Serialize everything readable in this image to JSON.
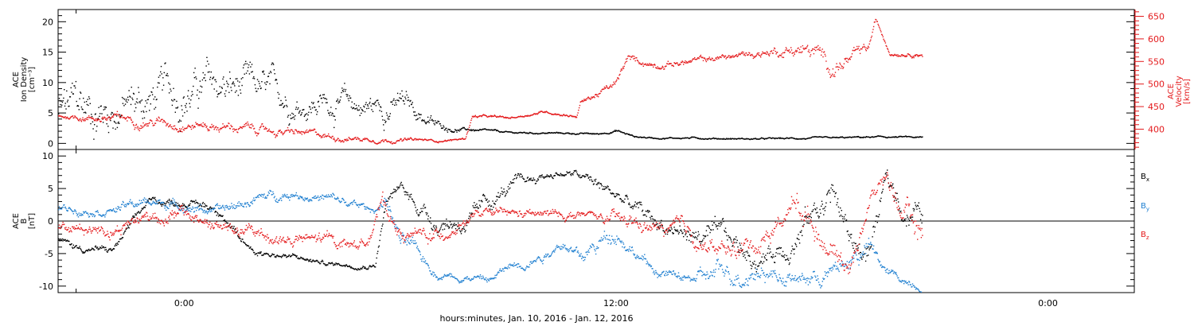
{
  "x_axis": {
    "label": "hours:minutes, Jan. 10, 2016 - Jan. 12, 2016",
    "ticks": [
      {
        "hour": 0,
        "label": "0:00"
      },
      {
        "hour": 12,
        "label": "12:00"
      },
      {
        "hour": 24,
        "label": "0:00"
      }
    ],
    "range_hours": [
      -3.5,
      26.4
    ],
    "minor_step_hours": 1
  },
  "colors": {
    "black": "#000000",
    "red": "#e41a1c",
    "blue": "#1f7fd0"
  },
  "chart_data": [
    {
      "type": "scatter",
      "name": "density-velocity-panel",
      "left_axis": {
        "label_lines": [
          "ACE",
          "Ion Density",
          "[cm⁻³]"
        ],
        "range": [
          -1,
          22
        ],
        "ticks": [
          0,
          5,
          10,
          15,
          20
        ],
        "minor_step": 1
      },
      "right_axis": {
        "label_lines": [
          "ACE",
          "Velocity",
          "[km/s]"
        ],
        "range": [
          355,
          665
        ],
        "ticks": [
          400,
          450,
          500,
          550,
          600,
          650
        ],
        "minor_step": 10,
        "color": "#e41a1c"
      },
      "series": [
        {
          "label": "Ion Density",
          "axis": "left",
          "color": "#000000",
          "x_hours": [
            -3.5,
            -3,
            -2,
            -1,
            0,
            1,
            2,
            3,
            4,
            5,
            6,
            6.5,
            7,
            7.5,
            8,
            9,
            10,
            11,
            11.5,
            12,
            12.5,
            13,
            14,
            15,
            16,
            17,
            18,
            19,
            20,
            20.5
          ],
          "y": [
            5,
            5.3,
            6,
            7,
            9,
            9,
            8,
            7,
            7,
            6,
            6.5,
            5,
            3,
            2.5,
            2.3,
            1.8,
            1.8,
            1.7,
            1.6,
            2.2,
            1.2,
            1,
            1,
            0.9,
            0.8,
            0.9,
            0.9,
            1.1,
            1.1,
            1
          ],
          "scatter": [
            6,
            6,
            5,
            5,
            5,
            5,
            4,
            3,
            3,
            3,
            3,
            2,
            1,
            0.5,
            0.3,
            0.2,
            0.2,
            0.2,
            0.2,
            0.3,
            0.2,
            0.2,
            0.2,
            0.2,
            0.2,
            0.2,
            0.2,
            0.2,
            0.2,
            0.2
          ]
        },
        {
          "label": "Velocity",
          "axis": "right",
          "color": "#e41a1c",
          "x_hours": [
            -3.5,
            -2,
            0,
            2,
            4,
            5,
            6,
            7,
            7.5,
            7.8,
            8,
            9,
            10,
            10.9,
            11,
            12,
            12.3,
            13,
            14,
            15,
            16,
            17,
            17.5,
            18,
            18.5,
            19,
            19.2,
            19.6,
            20,
            20.5
          ],
          "y": [
            430,
            425,
            415,
            400,
            385,
            380,
            378,
            375,
            378,
            380,
            430,
            425,
            440,
            430,
            460,
            500,
            555,
            545,
            550,
            560,
            570,
            580,
            570,
            540,
            555,
            575,
            640,
            570,
            570,
            570
          ],
          "scatter": [
            6,
            14,
            16,
            14,
            10,
            8,
            6,
            4,
            3,
            3,
            5,
            4,
            4,
            4,
            8,
            12,
            12,
            10,
            10,
            10,
            12,
            22,
            25,
            28,
            20,
            14,
            6,
            6,
            6,
            8
          ]
        }
      ]
    },
    {
      "type": "scatter",
      "name": "magnetic-field-panel",
      "left_axis": {
        "label_lines": [
          "ACE",
          "B",
          "[nT]"
        ],
        "range": [
          -11,
          11
        ],
        "ticks": [
          -10,
          -5,
          0,
          5,
          10
        ],
        "minor_step": 1
      },
      "zero_line": true,
      "series": [
        {
          "label": "Bx",
          "color": "#000000",
          "x_hours": [
            -3.5,
            -3,
            -2,
            -1,
            0,
            1,
            1.5,
            2,
            3,
            4,
            5,
            5.3,
            5.6,
            6,
            7,
            8,
            8.5,
            9,
            10,
            10.5,
            11,
            12,
            13,
            14,
            15,
            16,
            17,
            18,
            18.5,
            19,
            19.5,
            20,
            20.5
          ],
          "y": [
            -3,
            -4,
            -4.5,
            3,
            3,
            2,
            -3,
            -4.5,
            -5.5,
            -6.5,
            -6.7,
            -6.5,
            3,
            5,
            0,
            0,
            3,
            5,
            7,
            7.5,
            7,
            4,
            0,
            -2,
            -3,
            -6,
            -2,
            5,
            -3,
            -5,
            6,
            2,
            1
          ],
          "scatter": [
            0.8,
            0.8,
            0.8,
            0.8,
            0.8,
            1,
            1,
            0.8,
            0.6,
            0.5,
            0.5,
            0.5,
            1.2,
            1.5,
            2,
            2,
            2,
            1.5,
            0.8,
            0.8,
            1,
            1.5,
            2,
            2,
            2.5,
            2,
            3,
            3,
            2.5,
            3,
            2,
            3,
            3
          ]
        },
        {
          "label": "By",
          "color": "#1f7fd0",
          "x_hours": [
            -3.5,
            -2,
            -1,
            0,
            1,
            2,
            3,
            4,
            5,
            5.2,
            5.6,
            6,
            7,
            8,
            8.5,
            9,
            10,
            10.5,
            11,
            12,
            13,
            14,
            15,
            16,
            17,
            18,
            19,
            19.5,
            20,
            20.5
          ],
          "y": [
            2,
            2,
            3,
            2.5,
            1.5,
            3.5,
            4.5,
            3.5,
            2,
            1.5,
            3.5,
            -3,
            -8,
            -8.5,
            -9,
            -7,
            -5,
            -3,
            -6,
            -1,
            -7.5,
            -9,
            -8,
            -7,
            -9,
            -8,
            -4,
            -8,
            -9,
            -10
          ],
          "scatter": [
            0.8,
            1,
            1,
            1,
            1,
            1,
            1,
            1,
            1,
            1,
            1,
            2,
            0.8,
            0.8,
            0.8,
            1,
            1,
            1,
            1.5,
            2,
            1,
            1,
            2.5,
            2,
            1.5,
            2,
            2,
            1,
            1,
            0.8
          ]
        },
        {
          "label": "Bz",
          "color": "#e41a1c",
          "x_hours": [
            -3.5,
            -2,
            -1,
            0,
            1,
            2,
            3,
            4,
            5,
            5.5,
            6,
            7,
            8,
            9,
            10,
            11,
            12,
            13,
            14,
            15,
            16,
            17,
            18,
            18.5,
            19,
            19.5,
            20,
            20.5
          ],
          "y": [
            -1,
            -1,
            1,
            1,
            -1,
            -2,
            -3,
            -3,
            -3.5,
            3,
            -2,
            -2.5,
            1,
            1,
            1,
            1,
            0,
            -1,
            -2,
            -5,
            -3,
            3,
            -4,
            -7,
            3,
            7,
            1,
            -2
          ],
          "scatter": [
            1,
            1.5,
            1.5,
            1.5,
            1.5,
            1.5,
            1.5,
            1.5,
            1,
            1.5,
            1.5,
            1.5,
            1,
            1,
            1,
            1,
            1.5,
            1.5,
            2,
            2,
            2,
            3,
            2,
            2,
            2,
            2,
            2.5,
            3
          ]
        }
      ],
      "legend": [
        {
          "label": "B",
          "sub": "x",
          "color": "#000000"
        },
        {
          "label": "B",
          "sub": "y",
          "color": "#1f7fd0"
        },
        {
          "label": "B",
          "sub": "z",
          "color": "#e41a1c"
        }
      ],
      "legend_position": "right"
    }
  ]
}
